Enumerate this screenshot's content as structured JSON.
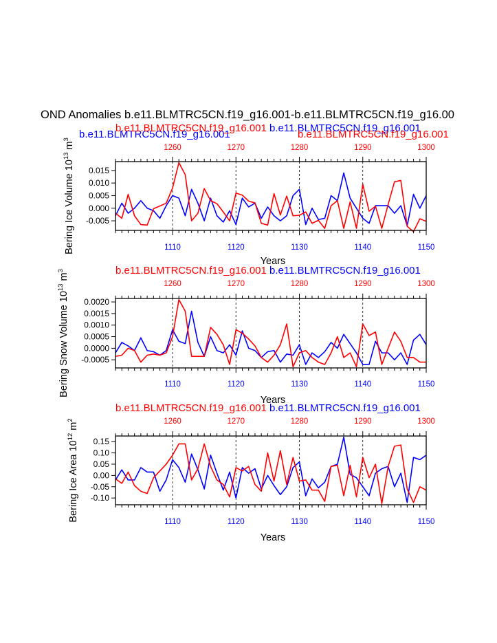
{
  "main_title": "OND Anomalies b.e11.BLMTRC5CN.f19_g16.001-b.e11.BLMTRC5CN.f19_g16.00",
  "colors": {
    "blue": "#0000ff",
    "red": "#ff0000",
    "black": "#000000"
  },
  "chart_data": [
    {
      "type": "line",
      "ylabel": "Bering Ice Volume 10 13 m 3",
      "ylabel_main": "Bering Ice Volume 10",
      "ylabel_exp": "13",
      "ylabel_unit": " m",
      "ylabel_unit_exp": "3",
      "xlabel": "Years",
      "top_labels": [
        {
          "text": "b.e11.BLMTRC5CN.f19_g16.001",
          "color": "#0000ff",
          "pos": "left"
        },
        {
          "text": "b.e11.BLMTRC5CN.f19_g16.001",
          "color": "#ff0000",
          "pos": "center-left"
        },
        {
          "text": "b.e11.BLMTRC5CN.f19_g16.001",
          "color": "#0000ff",
          "pos": "center-right"
        },
        {
          "text": "b.e11.BLMTRC5CN.f19_g16.001",
          "color": "#ff0000",
          "pos": "right"
        }
      ],
      "ylim": [
        -0.0088,
        0.0185
      ],
      "ytick_values": [
        0.015,
        0.01,
        0.005,
        0.0,
        -0.005
      ],
      "ytick_labels": [
        "0.015",
        "0.010",
        "0.005",
        "0.000",
        "-0.005"
      ],
      "series": [
        {
          "name": "b.e11.BLMTRC5CN.f19_g16.001",
          "color": "#0000ff",
          "x": [
            1101,
            1102,
            1103,
            1104,
            1105,
            1106,
            1107,
            1108,
            1109,
            1110,
            1111,
            1112,
            1113,
            1114,
            1115,
            1116,
            1117,
            1118,
            1119,
            1120,
            1121,
            1122,
            1123,
            1124,
            1125,
            1126,
            1127,
            1128,
            1129,
            1130,
            1131,
            1132,
            1133,
            1134,
            1135,
            1136,
            1137,
            1138,
            1139,
            1140,
            1141,
            1142,
            1143,
            1144,
            1145,
            1146,
            1147,
            1148,
            1149,
            1150
          ],
          "values": [
            -0.003,
            0.002,
            -0.002,
            0.0,
            0.003,
            0.0,
            -0.001,
            -0.004,
            0.001,
            0.005,
            0.004,
            -0.003,
            0.0075,
            0.002,
            -0.005,
            0.004,
            -0.003,
            -0.0055,
            -0.001,
            -0.0065,
            0.004,
            0.0005,
            0.002,
            -0.004,
            0.0005,
            -0.003,
            -0.005,
            -0.003,
            0.005,
            0.0075,
            -0.0065,
            0.0,
            -0.0045,
            -0.004,
            0.005,
            0.003,
            0.014,
            0.004,
            0.0,
            -0.004,
            -0.006,
            0.001,
            0.001,
            0.001,
            -0.002,
            0.001,
            -0.007,
            0.0055,
            0.0,
            0.005
          ]
        },
        {
          "name": "b.e11.BLMTRC5CN.f19_g16.001",
          "color": "#ff0000",
          "x": [
            1251,
            1252,
            1253,
            1254,
            1255,
            1256,
            1257,
            1258,
            1259,
            1260,
            1261,
            1262,
            1263,
            1264,
            1265,
            1266,
            1267,
            1268,
            1269,
            1270,
            1271,
            1272,
            1273,
            1274,
            1275,
            1276,
            1277,
            1278,
            1279,
            1280,
            1281,
            1282,
            1283,
            1284,
            1285,
            1286,
            1287,
            1288,
            1289,
            1290,
            1291,
            1292,
            1293,
            1294,
            1295,
            1296,
            1297,
            1298,
            1299,
            1300
          ],
          "values": [
            -0.002,
            -0.004,
            0.0055,
            -0.003,
            -0.0065,
            -0.0067,
            -0.0002,
            0.0009,
            0.002,
            0.008,
            0.0181,
            0.0133,
            -0.005,
            -0.002,
            0.0078,
            0.003,
            0.0018,
            -0.0015,
            -0.005,
            0.006,
            0.0052,
            0.0028,
            0.0021,
            -0.006,
            -0.0067,
            0.0058,
            -0.0027,
            0.0048,
            -0.003,
            -0.0028,
            -0.0015,
            -0.006,
            -0.0048,
            -0.008,
            0.001,
            0.003,
            -0.008,
            0.0025,
            -0.008,
            0.0095,
            -0.0012,
            0.0008,
            -0.008,
            0.0015,
            0.0105,
            0.011,
            -0.0072,
            -0.0093,
            -0.0042,
            -0.0052
          ]
        }
      ],
      "xaxis_bottom": {
        "min": 1101,
        "max": 1150,
        "ticks": [
          1110,
          1120,
          1130,
          1140,
          1150
        ],
        "tick_labels": [
          "1110",
          "1120",
          "1130",
          "1140",
          "1150"
        ],
        "color": "#0000ff"
      },
      "xaxis_top": {
        "min": 1251,
        "max": 1300,
        "ticks": [
          1260,
          1270,
          1280,
          1290,
          1300
        ],
        "tick_labels": [
          "1260",
          "1270",
          "1280",
          "1290",
          "1300"
        ],
        "color": "#ff0000"
      },
      "grid": "vertical-dashed-at-major-ticks"
    },
    {
      "type": "line",
      "ylabel": "Bering Snow Volume 10 13 m 3",
      "ylabel_main": "Bering Snow Volume 10",
      "ylabel_exp": "13",
      "ylabel_unit": " m",
      "ylabel_unit_exp": "3",
      "xlabel": "Years",
      "top_labels": [
        {
          "text": "b.e11.BLMTRC5CN.f19_g16.001",
          "color": "#ff0000",
          "pos": "center-left"
        },
        {
          "text": "b.e11.BLMTRC5CN.f19_g16.001",
          "color": "#0000ff",
          "pos": "center-right"
        }
      ],
      "ylim": [
        -0.00085,
        0.00215
      ],
      "ytick_values": [
        0.002,
        0.0015,
        0.001,
        0.0005,
        0.0,
        -0.0005
      ],
      "ytick_labels": [
        "0.0020",
        "0.0015",
        "0.0010",
        "0.0005",
        "0.0000",
        "-0.0005"
      ],
      "series": [
        {
          "name": "b.e11.BLMTRC5CN.f19_g16.001",
          "color": "#0000ff",
          "x": [
            1101,
            1102,
            1103,
            1104,
            1105,
            1106,
            1107,
            1108,
            1109,
            1110,
            1111,
            1112,
            1113,
            1114,
            1115,
            1116,
            1117,
            1118,
            1119,
            1120,
            1121,
            1122,
            1123,
            1124,
            1125,
            1126,
            1127,
            1128,
            1129,
            1130,
            1131,
            1132,
            1133,
            1134,
            1135,
            1136,
            1137,
            1138,
            1139,
            1140,
            1141,
            1142,
            1143,
            1144,
            1145,
            1146,
            1147,
            1148,
            1149,
            1150
          ],
          "values": [
            -0.0002,
            0.00025,
            0.0001,
            -0.0001,
            0.00045,
            -0.0001,
            -0.00015,
            -0.0003,
            -0.0001,
            0.0008,
            0.0003,
            0.0002,
            0.0016,
            0.00025,
            -0.00035,
            0.0005,
            -0.0001,
            -0.0002,
            0.00015,
            -0.0003,
            0.00075,
            0.0,
            -0.0001,
            -0.0004,
            -0.00015,
            -0.0001,
            -0.0006,
            -0.00025,
            -0.0003,
            0.00015,
            -0.0007,
            -0.0002,
            -0.0004,
            -0.00015,
            0.00025,
            0.0,
            0.0006,
            0.0002,
            -0.0002,
            -0.0007,
            -0.0007,
            0.0003,
            -0.0002,
            -0.0002,
            -0.0005,
            -0.0002,
            -0.0007,
            0.00035,
            0.0006,
            0.00015
          ]
        },
        {
          "name": "b.e11.BLMTRC5CN.f19_g16.001",
          "color": "#ff0000",
          "x": [
            1251,
            1252,
            1253,
            1254,
            1255,
            1256,
            1257,
            1258,
            1259,
            1260,
            1261,
            1262,
            1263,
            1264,
            1265,
            1266,
            1267,
            1268,
            1269,
            1270,
            1271,
            1272,
            1273,
            1274,
            1275,
            1276,
            1277,
            1278,
            1279,
            1280,
            1281,
            1282,
            1283,
            1284,
            1285,
            1286,
            1287,
            1288,
            1289,
            1290,
            1291,
            1292,
            1293,
            1294,
            1295,
            1296,
            1297,
            1298,
            1299,
            1300
          ],
          "values": [
            -0.00035,
            -0.0003,
            0.0,
            -0.0001,
            -0.0006,
            -0.0003,
            -0.00025,
            -0.0003,
            -0.0002,
            0.0005,
            0.0021,
            0.0016,
            -0.00035,
            -0.00035,
            -0.00035,
            0.0009,
            0.0006,
            0.00015,
            -0.0007,
            0.0008,
            0.00065,
            0.0004,
            0.0001,
            -0.0004,
            -0.0006,
            -0.0003,
            0.00015,
            0.00105,
            -0.0008,
            -0.0002,
            -0.0001,
            -0.0004,
            -0.0006,
            -0.0007,
            -0.0002,
            0.0005,
            -0.0004,
            -0.0002,
            -0.0008,
            0.00105,
            0.00055,
            0.0007,
            -0.0007,
            0.0,
            0.0007,
            0.0003,
            -0.0004,
            -0.0004,
            -0.0006,
            -0.0006
          ]
        }
      ],
      "xaxis_bottom": {
        "min": 1101,
        "max": 1150,
        "ticks": [
          1110,
          1120,
          1130,
          1140,
          1150
        ],
        "tick_labels": [
          "1110",
          "1120",
          "1130",
          "1140",
          "1150"
        ],
        "color": "#0000ff"
      },
      "xaxis_top": {
        "min": 1251,
        "max": 1300,
        "ticks": [
          1260,
          1270,
          1280,
          1290,
          1300
        ],
        "tick_labels": [
          "1260",
          "1270",
          "1280",
          "1290",
          "1300"
        ],
        "color": "#ff0000"
      },
      "grid": "vertical-dashed-at-major-ticks"
    },
    {
      "type": "line",
      "ylabel": "Bering Ice Area 10 12 m 2",
      "ylabel_main": "Bering Ice Area 10",
      "ylabel_exp": "12",
      "ylabel_unit": " m",
      "ylabel_unit_exp": "2",
      "xlabel": "Years",
      "top_labels": [
        {
          "text": "b.e11.BLMTRC5CN.f19_g16.001",
          "color": "#ff0000",
          "pos": "center-left"
        },
        {
          "text": "b.e11.BLMTRC5CN.f19_g16.001",
          "color": "#0000ff",
          "pos": "center-right"
        }
      ],
      "ylim": [
        -0.13,
        0.175
      ],
      "ytick_values": [
        0.15,
        0.1,
        0.05,
        0.0,
        -0.05,
        -0.1
      ],
      "ytick_labels": [
        "0.15",
        "0.10",
        "0.05",
        "0.00",
        "-0.05",
        "-0.10"
      ],
      "series": [
        {
          "name": "b.e11.BLMTRC5CN.f19_g16.001",
          "color": "#0000ff",
          "x": [
            1101,
            1102,
            1103,
            1104,
            1105,
            1106,
            1107,
            1108,
            1109,
            1110,
            1111,
            1112,
            1113,
            1114,
            1115,
            1116,
            1117,
            1118,
            1119,
            1120,
            1121,
            1122,
            1123,
            1124,
            1125,
            1126,
            1127,
            1128,
            1129,
            1130,
            1131,
            1132,
            1133,
            1134,
            1135,
            1136,
            1137,
            1138,
            1139,
            1140,
            1141,
            1142,
            1143,
            1144,
            1145,
            1146,
            1147,
            1148,
            1149,
            1150
          ],
          "values": [
            -0.02,
            0.025,
            -0.02,
            -0.02,
            0.035,
            0.015,
            0.015,
            -0.07,
            -0.02,
            0.07,
            0.035,
            -0.03,
            0.095,
            0.025,
            -0.06,
            0.09,
            0.01,
            -0.065,
            0.015,
            -0.1,
            0.035,
            0.01,
            0.03,
            -0.06,
            0.0,
            -0.045,
            -0.085,
            -0.05,
            0.035,
            0.06,
            -0.09,
            -0.015,
            -0.055,
            -0.03,
            0.04,
            0.05,
            0.17,
            0.005,
            -0.01,
            -0.05,
            -0.09,
            0.01,
            0.03,
            0.04,
            -0.05,
            0.01,
            -0.12,
            0.08,
            0.07,
            0.09
          ]
        },
        {
          "name": "b.e11.BLMTRC5CN.f19_g16.001",
          "color": "#ff0000",
          "x": [
            1251,
            1252,
            1253,
            1254,
            1255,
            1256,
            1257,
            1258,
            1259,
            1260,
            1261,
            1262,
            1263,
            1264,
            1265,
            1266,
            1267,
            1268,
            1269,
            1270,
            1271,
            1272,
            1273,
            1274,
            1275,
            1276,
            1277,
            1278,
            1279,
            1280,
            1281,
            1282,
            1283,
            1284,
            1285,
            1286,
            1287,
            1288,
            1289,
            1290,
            1291,
            1292,
            1293,
            1294,
            1295,
            1296,
            1297,
            1298,
            1299,
            1300
          ],
          "values": [
            -0.015,
            -0.035,
            0.015,
            -0.045,
            -0.07,
            -0.08,
            -0.01,
            0.02,
            0.05,
            0.09,
            0.14,
            0.14,
            -0.02,
            0.03,
            0.14,
            0.04,
            -0.02,
            -0.04,
            -0.095,
            0.035,
            0.02,
            0.04,
            -0.04,
            -0.07,
            0.1,
            -0.025,
            0.11,
            -0.04,
            0.08,
            -0.025,
            -0.02,
            -0.065,
            -0.065,
            -0.115,
            0.04,
            0.045,
            -0.09,
            0.045,
            -0.095,
            0.08,
            -0.01,
            0.05,
            -0.125,
            0.04,
            0.13,
            0.135,
            -0.06,
            -0.12,
            -0.05,
            -0.065
          ]
        }
      ],
      "xaxis_bottom": {
        "min": 1101,
        "max": 1150,
        "ticks": [
          1110,
          1120,
          1130,
          1140,
          1150
        ],
        "tick_labels": [
          "1110",
          "1120",
          "1130",
          "1140",
          "1150"
        ],
        "color": "#0000ff"
      },
      "xaxis_top": {
        "min": 1251,
        "max": 1300,
        "ticks": [
          1260,
          1270,
          1280,
          1290,
          1300
        ],
        "tick_labels": [
          "1260",
          "1270",
          "1280",
          "1290",
          "1300"
        ],
        "color": "#ff0000"
      },
      "grid": "vertical-dashed-at-major-ticks"
    }
  ]
}
